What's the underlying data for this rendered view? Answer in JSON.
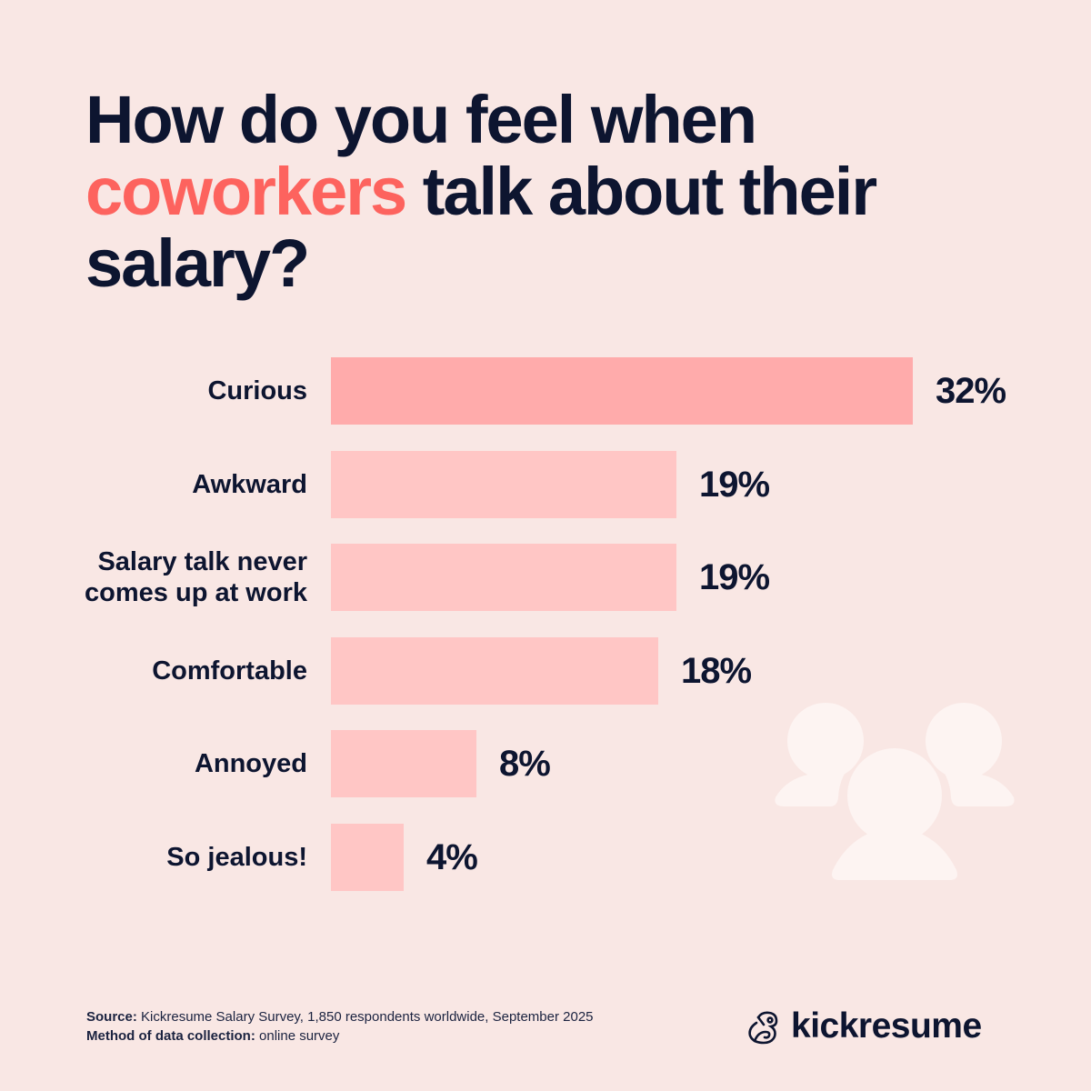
{
  "title": {
    "part1": "How do you feel when",
    "accent": "coworkers",
    "part2": "talk about their salary?"
  },
  "colors": {
    "background": "#f9e7e4",
    "text": "#0d1530",
    "accent": "#fd635e",
    "bar_top": "#ffabab",
    "bar_default": "#ffc6c5",
    "illustration": "#fdf4f2"
  },
  "rows": [
    {
      "label": "Curious",
      "value_label": "32%"
    },
    {
      "label": "Awkward",
      "value_label": "19%"
    },
    {
      "label": "Salary talk never comes up at work",
      "value_label": "19%"
    },
    {
      "label": "Comfortable",
      "value_label": "18%"
    },
    {
      "label": "Annoyed",
      "value_label": "8%"
    },
    {
      "label": "So jealous!",
      "value_label": "4%"
    }
  ],
  "footer": {
    "source_label": "Source:",
    "source_text": "Kickresume Salary Survey, 1,850 respondents worldwide, September 2025",
    "method_label": "Method of data collection:",
    "method_text": "online survey"
  },
  "logo": {
    "icon": "chameleon-logo-icon",
    "text": "kickresume"
  },
  "decoration": {
    "icon": "people-group-icon"
  },
  "chart_data": {
    "type": "bar",
    "orientation": "horizontal",
    "title": "How do you feel when coworkers talk about their salary?",
    "categories": [
      "Curious",
      "Awkward",
      "Salary talk never comes up at work",
      "Comfortable",
      "Annoyed",
      "So jealous!"
    ],
    "values": [
      32,
      19,
      19,
      18,
      8,
      4
    ],
    "unit": "%",
    "xlabel": "",
    "ylabel": "",
    "xlim": [
      0,
      32
    ],
    "grid": false,
    "legend": null,
    "data_labels": true,
    "highlight": {
      "category": "Curious",
      "color": "#ffabab"
    },
    "default_bar_color": "#ffc6c5"
  }
}
